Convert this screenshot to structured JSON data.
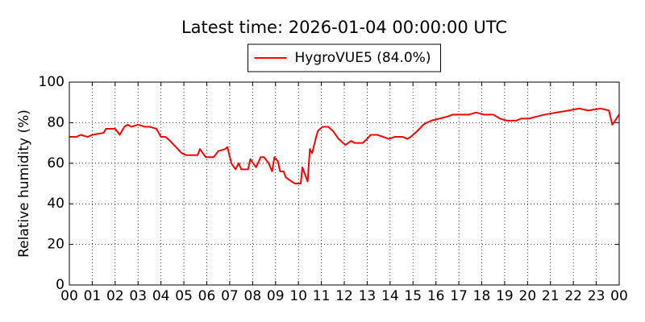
{
  "chart_data": {
    "type": "line",
    "title": "Latest time: 2026-01-04 00:00:00 UTC",
    "ylabel": "Relative humidity (%)",
    "series": [
      {
        "name": "HygroVUE5 (84.0%)",
        "color": "#ff0000",
        "x": [
          0,
          0.3,
          0.5,
          0.8,
          1.0,
          1.5,
          1.6,
          2.0,
          2.2,
          2.4,
          2.55,
          2.7,
          3.0,
          3.3,
          3.5,
          3.8,
          4.0,
          4.2,
          4.4,
          4.9,
          5.1,
          5.6,
          5.7,
          5.95,
          6.3,
          6.5,
          6.8,
          6.9,
          7.07,
          7.25,
          7.4,
          7.5,
          7.8,
          7.9,
          8.15,
          8.35,
          8.5,
          8.7,
          8.85,
          8.95,
          9.1,
          9.2,
          9.35,
          9.45,
          9.7,
          9.85,
          10.1,
          10.17,
          10.4,
          10.5,
          10.6,
          10.75,
          10.85,
          11.05,
          11.3,
          11.5,
          11.75,
          11.95,
          12.05,
          12.3,
          12.45,
          12.8,
          13.0,
          13.15,
          13.45,
          13.7,
          13.95,
          14.2,
          14.55,
          14.75,
          14.9,
          15.2,
          15.45,
          15.6,
          15.8,
          16.15,
          16.5,
          16.75,
          17.2,
          17.45,
          17.75,
          18.1,
          18.5,
          18.8,
          19.1,
          19.5,
          19.7,
          20.05,
          20.4,
          20.75,
          21.25,
          21.8,
          22.25,
          22.65,
          23.2,
          23.55,
          23.7,
          24.0
        ],
        "values": [
          73,
          73,
          74,
          73,
          74,
          75,
          77,
          77,
          74,
          78,
          79,
          78,
          79,
          78,
          78,
          77,
          73,
          73,
          71,
          65,
          64,
          64,
          67,
          63,
          63,
          66,
          67,
          68,
          60,
          57,
          60,
          57,
          57,
          62,
          58,
          63,
          63,
          60,
          56,
          63,
          61,
          56,
          56,
          53,
          51,
          50,
          50,
          58,
          51,
          67,
          65,
          72,
          76,
          78,
          78,
          76,
          72,
          70,
          69,
          71,
          70,
          70,
          72,
          74,
          74,
          73,
          72,
          73,
          73,
          72,
          73,
          76,
          79,
          80,
          81,
          82,
          83,
          84,
          84,
          84,
          85,
          84,
          84,
          82,
          81,
          81,
          82,
          82,
          83,
          84,
          85,
          86,
          87,
          86,
          87,
          86,
          79,
          84
        ]
      }
    ],
    "xlim": [
      0,
      24
    ],
    "xticks": [
      {
        "value": 0,
        "label": "00"
      },
      {
        "value": 1,
        "label": "01"
      },
      {
        "value": 2,
        "label": "02"
      },
      {
        "value": 3,
        "label": "03"
      },
      {
        "value": 4,
        "label": "04"
      },
      {
        "value": 5,
        "label": "05"
      },
      {
        "value": 6,
        "label": "06"
      },
      {
        "value": 7,
        "label": "07"
      },
      {
        "value": 8,
        "label": "08"
      },
      {
        "value": 9,
        "label": "09"
      },
      10,
      11,
      12,
      13,
      14,
      15,
      16,
      17,
      18,
      19,
      20,
      21,
      22,
      23,
      {
        "value": 24,
        "label": "00"
      }
    ],
    "ylim": [
      0,
      100
    ],
    "yticks": [
      0,
      20,
      40,
      60,
      80,
      100
    ],
    "grid": true,
    "legend": "top"
  }
}
